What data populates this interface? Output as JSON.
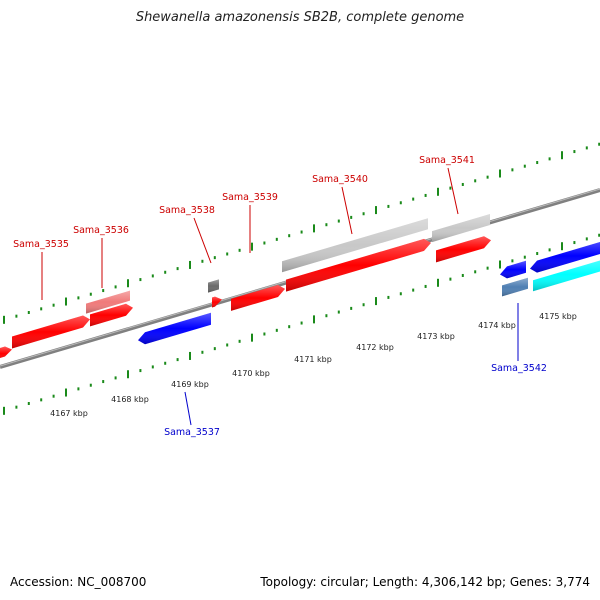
{
  "title": "Shewanella amazonensis SB2B, complete genome",
  "footer": {
    "accession": "Accession: NC_008700",
    "summary": "Topology: circular; Length: 4,306,142 bp; Genes: 3,774"
  },
  "colors": {
    "forward_gene": "#ff0000",
    "forward_pseudo": "#f07a7a",
    "reverse_gene": "#0000ff",
    "rna_gene": "#00ffff",
    "reverse_pseudo": "#4f7fb3",
    "hypothetical": "#c8c8c8",
    "tick": "#1a8a1a",
    "backbone": "#808080"
  },
  "tick_labels": [
    "4167 kbp",
    "4168 kbp",
    "4169 kbp",
    "4170 kbp",
    "4171 kbp",
    "4172 kbp",
    "4173 kbp",
    "4174 kbp",
    "4175 kbp"
  ],
  "gene_labels": [
    {
      "name": "Sama_3535",
      "strand": "forward"
    },
    {
      "name": "Sama_3536",
      "strand": "forward"
    },
    {
      "name": "Sama_3537",
      "strand": "reverse"
    },
    {
      "name": "Sama_3538",
      "strand": "forward"
    },
    {
      "name": "Sama_3539",
      "strand": "forward"
    },
    {
      "name": "Sama_3540",
      "strand": "forward"
    },
    {
      "name": "Sama_3541",
      "strand": "forward"
    },
    {
      "name": "Sama_3542",
      "strand": "reverse"
    }
  ]
}
